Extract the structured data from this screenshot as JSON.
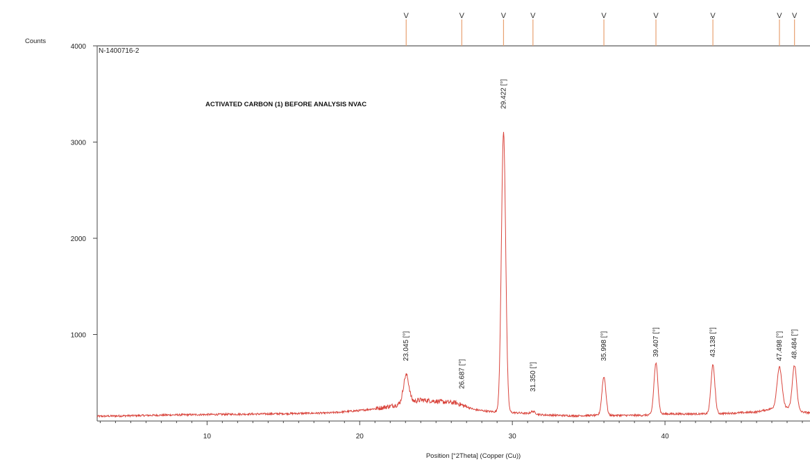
{
  "chart_data": {
    "type": "line",
    "title": "ACTIVATED CARBON (1) BEFORE ANALYSIS NVAC",
    "sample_id": "N-1400716-2",
    "xlabel": "Position [°2Theta] (Copper (Cu))",
    "ylabel": "Counts",
    "xlim": [
      2.8,
      49.5
    ],
    "ylim": [
      0,
      4000
    ],
    "x_ticks": [
      10,
      20,
      30,
      40
    ],
    "y_ticks": [
      1000,
      2000,
      3000,
      4000
    ],
    "grid": false,
    "line_color": "#d9443c",
    "marker_color": "#e8a070",
    "baseline": {
      "x": [
        2.8,
        8,
        14,
        18,
        20,
        21.5,
        22.5,
        24,
        25.5,
        26.3,
        27.5,
        28.5,
        30.5,
        32,
        34,
        35.5,
        36.5,
        38.5,
        40,
        42.5,
        44,
        46,
        47,
        48,
        49,
        49.5
      ],
      "y": [
        150,
        165,
        175,
        185,
        210,
        240,
        270,
        320,
        300,
        290,
        220,
        200,
        185,
        165,
        155,
        160,
        160,
        160,
        175,
        175,
        180,
        195,
        230,
        240,
        195,
        185
      ]
    },
    "peaks": [
      {
        "position": 23.045,
        "label": "23.045 [°]",
        "height": 580,
        "width": 0.18,
        "label_y": 880
      },
      {
        "position": 26.687,
        "label": "26.687 [°]",
        "height": 250,
        "width": 0.1,
        "label_y": 590
      },
      {
        "position": 29.422,
        "label": "29.422 [°]",
        "height": 3100,
        "width": 0.14,
        "label_y": 3500
      },
      {
        "position": 31.35,
        "label": "31.350 [°]",
        "height": 200,
        "width": 0.15,
        "label_y": 560
      },
      {
        "position": 35.998,
        "label": "35.998 [°]",
        "height": 560,
        "width": 0.13,
        "label_y": 880
      },
      {
        "position": 39.407,
        "label": "39.407 [°]",
        "height": 700,
        "width": 0.13,
        "label_y": 920
      },
      {
        "position": 43.138,
        "label": "43.138 [°]",
        "height": 680,
        "width": 0.13,
        "label_y": 920
      },
      {
        "position": 47.498,
        "label": "47.498 [°]",
        "height": 660,
        "width": 0.16,
        "label_y": 880
      },
      {
        "position": 48.484,
        "label": "48.484 [°]",
        "height": 680,
        "width": 0.14,
        "label_y": 900
      }
    ]
  }
}
